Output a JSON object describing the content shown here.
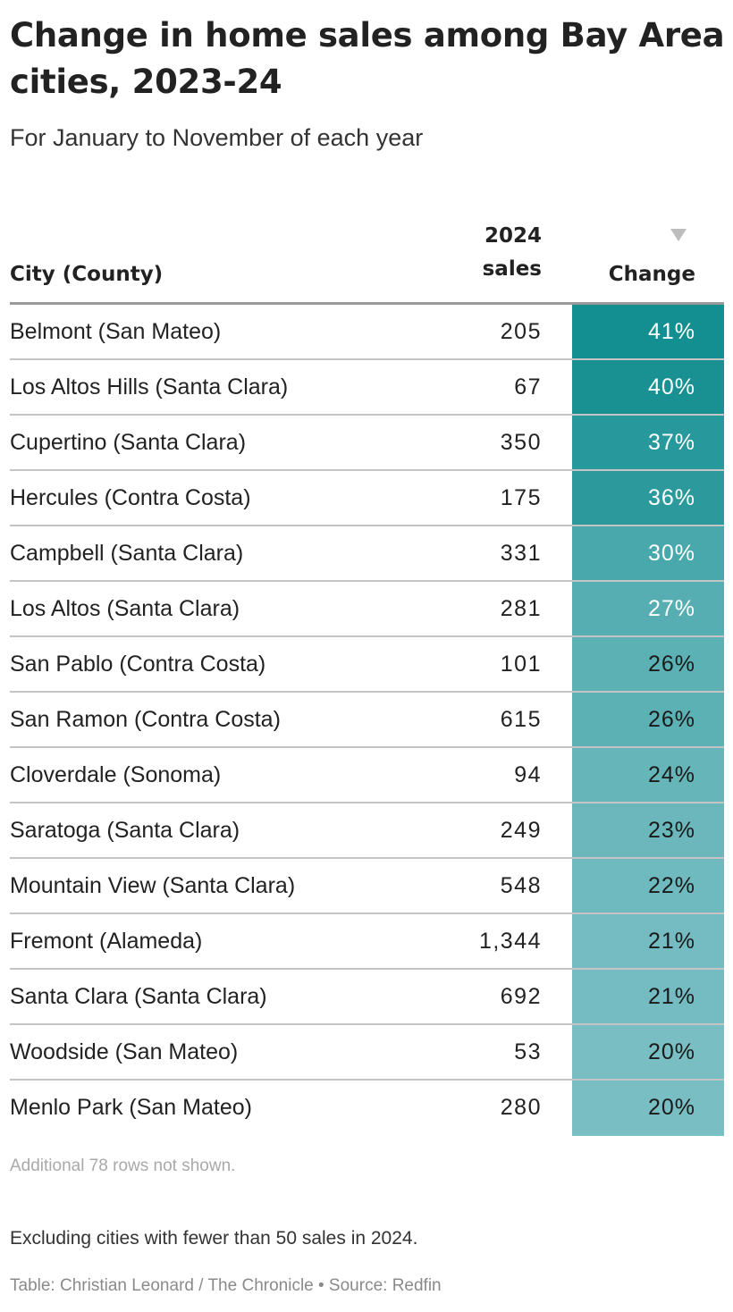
{
  "title": "Change in home sales among Bay Area cities, 2023-24",
  "subtitle": "For January to November of each year",
  "table": {
    "headers": {
      "city": "City (County)",
      "sales_line1": "2024",
      "sales_line2": "sales",
      "change": "Change"
    },
    "sort_icon": "sort-descending-icon"
  },
  "chart_data": {
    "type": "table",
    "title": "Change in home sales among Bay Area cities, 2023-24",
    "subtitle": "For January to November of each year",
    "columns": [
      "City (County)",
      "2024 sales",
      "Change"
    ],
    "sorted_by": "Change",
    "sort_order": "descending",
    "color_scale": {
      "high": "#148f91",
      "low": "#79bec3"
    },
    "rows": [
      {
        "city": "Belmont (San Mateo)",
        "sales": "205",
        "change": "41%",
        "change_value": 41
      },
      {
        "city": "Los Altos Hills (Santa Clara)",
        "sales": "67",
        "change": "40%",
        "change_value": 40
      },
      {
        "city": "Cupertino (Santa Clara)",
        "sales": "350",
        "change": "37%",
        "change_value": 37
      },
      {
        "city": "Hercules (Contra Costa)",
        "sales": "175",
        "change": "36%",
        "change_value": 36
      },
      {
        "city": "Campbell (Santa Clara)",
        "sales": "331",
        "change": "30%",
        "change_value": 30
      },
      {
        "city": "Los Altos (Santa Clara)",
        "sales": "281",
        "change": "27%",
        "change_value": 27
      },
      {
        "city": "San Pablo (Contra Costa)",
        "sales": "101",
        "change": "26%",
        "change_value": 26
      },
      {
        "city": "San Ramon (Contra Costa)",
        "sales": "615",
        "change": "26%",
        "change_value": 26
      },
      {
        "city": "Cloverdale (Sonoma)",
        "sales": "94",
        "change": "24%",
        "change_value": 24
      },
      {
        "city": "Saratoga (Santa Clara)",
        "sales": "249",
        "change": "23%",
        "change_value": 23
      },
      {
        "city": "Mountain View (Santa Clara)",
        "sales": "548",
        "change": "22%",
        "change_value": 22
      },
      {
        "city": "Fremont (Alameda)",
        "sales": "1,344",
        "change": "21%",
        "change_value": 21
      },
      {
        "city": "Santa Clara (Santa Clara)",
        "sales": "692",
        "change": "21%",
        "change_value": 21
      },
      {
        "city": "Woodside (San Mateo)",
        "sales": "53",
        "change": "20%",
        "change_value": 20
      },
      {
        "city": "Menlo Park (San Mateo)",
        "sales": "280",
        "change": "20%",
        "change_value": 20
      }
    ]
  },
  "notes": {
    "additional_rows": "Additional 78 rows not shown.",
    "exclusion": "Excluding cities with fewer than 50 sales in 2024.",
    "credit": "Table: Christian Leonard / The Chronicle • Source: Redfin"
  }
}
